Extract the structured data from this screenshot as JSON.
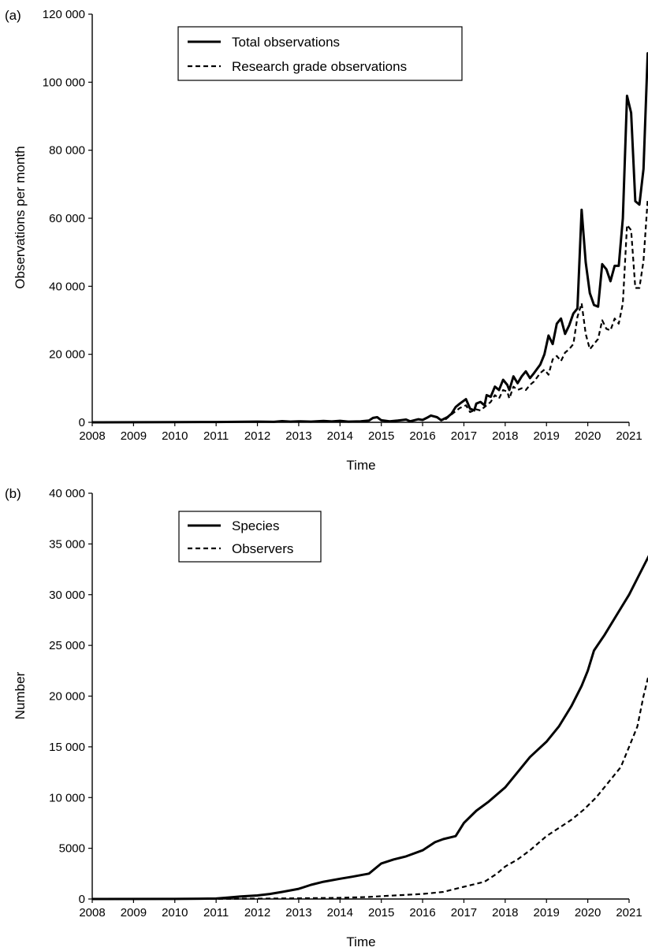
{
  "chart_data": [
    {
      "type": "line",
      "panel_label": "(a)",
      "xlabel": "Time",
      "ylabel": "Observations per month",
      "xlim": [
        2008,
        2021
      ],
      "ylim": [
        0,
        120000
      ],
      "x_ticks": [
        2008,
        2009,
        2010,
        2011,
        2012,
        2013,
        2014,
        2015,
        2016,
        2017,
        2018,
        2019,
        2020,
        2021
      ],
      "y_ticks": [
        0,
        20000,
        40000,
        60000,
        80000,
        100000,
        120000
      ],
      "y_tick_labels": [
        "0",
        "20 000",
        "40 000",
        "60 000",
        "80 000",
        "100 000",
        "120 000"
      ],
      "grid": false,
      "legend_position": "top-center",
      "series": [
        {
          "name": "Total observations",
          "style": "solid",
          "points": [
            [
              2008,
              0
            ],
            [
              2010,
              50
            ],
            [
              2011,
              100
            ],
            [
              2012,
              200
            ],
            [
              2012.4,
              150
            ],
            [
              2012.6,
              350
            ],
            [
              2012.8,
              200
            ],
            [
              2013,
              300
            ],
            [
              2013.3,
              200
            ],
            [
              2013.6,
              400
            ],
            [
              2013.8,
              250
            ],
            [
              2014,
              450
            ],
            [
              2014.2,
              200
            ],
            [
              2014.5,
              300
            ],
            [
              2014.7,
              500
            ],
            [
              2014.8,
              1300
            ],
            [
              2014.9,
              1500
            ],
            [
              2015,
              600
            ],
            [
              2015.2,
              300
            ],
            [
              2015.4,
              500
            ],
            [
              2015.6,
              800
            ],
            [
              2015.7,
              300
            ],
            [
              2015.9,
              900
            ],
            [
              2016,
              700
            ],
            [
              2016.1,
              1300
            ],
            [
              2016.2,
              2000
            ],
            [
              2016.35,
              1500
            ],
            [
              2016.45,
              600
            ],
            [
              2016.6,
              1500
            ],
            [
              2016.7,
              2500
            ],
            [
              2016.8,
              4500
            ],
            [
              2016.9,
              5500
            ],
            [
              2017.05,
              6800
            ],
            [
              2017.15,
              4000
            ],
            [
              2017.25,
              3500
            ],
            [
              2017.3,
              5500
            ],
            [
              2017.4,
              6000
            ],
            [
              2017.5,
              5000
            ],
            [
              2017.55,
              8000
            ],
            [
              2017.65,
              7500
            ],
            [
              2017.75,
              10500
            ],
            [
              2017.85,
              9500
            ],
            [
              2017.95,
              12500
            ],
            [
              2018.05,
              11000
            ],
            [
              2018.1,
              9500
            ],
            [
              2018.2,
              13500
            ],
            [
              2018.3,
              11500
            ],
            [
              2018.4,
              13500
            ],
            [
              2018.5,
              15000
            ],
            [
              2018.6,
              13000
            ],
            [
              2018.7,
              14500
            ],
            [
              2018.85,
              17000
            ],
            [
              2018.95,
              20000
            ],
            [
              2019.05,
              25500
            ],
            [
              2019.15,
              23000
            ],
            [
              2019.25,
              29000
            ],
            [
              2019.35,
              30500
            ],
            [
              2019.45,
              26000
            ],
            [
              2019.55,
              28500
            ],
            [
              2019.65,
              32000
            ],
            [
              2019.75,
              33500
            ],
            [
              2019.85,
              62500
            ],
            [
              2019.95,
              47000
            ],
            [
              2020.05,
              38000
            ],
            [
              2020.15,
              34500
            ],
            [
              2020.25,
              34000
            ],
            [
              2020.35,
              46500
            ],
            [
              2020.45,
              45000
            ],
            [
              2020.55,
              41500
            ],
            [
              2020.65,
              46000
            ],
            [
              2020.75,
              46000
            ],
            [
              2020.85,
              60000
            ],
            [
              2020.95,
              96000
            ],
            [
              2021.05,
              91000
            ],
            [
              2021.15,
              65000
            ],
            [
              2021.25,
              64000
            ],
            [
              2021.35,
              74500
            ],
            [
              2021.45,
              108500
            ],
            [
              2021.52,
              100000
            ]
          ]
        },
        {
          "name": "Research grade observations",
          "style": "dashed",
          "points": [
            [
              2016.55,
              800
            ],
            [
              2016.65,
              1800
            ],
            [
              2016.8,
              3300
            ],
            [
              2016.9,
              4200
            ],
            [
              2017.05,
              5000
            ],
            [
              2017.15,
              3000
            ],
            [
              2017.3,
              3800
            ],
            [
              2017.4,
              3500
            ],
            [
              2017.55,
              5000
            ],
            [
              2017.65,
              6000
            ],
            [
              2017.75,
              8000
            ],
            [
              2017.85,
              7000
            ],
            [
              2017.95,
              9500
            ],
            [
              2018.05,
              9000
            ],
            [
              2018.1,
              7000
            ],
            [
              2018.2,
              10500
            ],
            [
              2018.3,
              9500
            ],
            [
              2018.4,
              10000
            ],
            [
              2018.5,
              9500
            ],
            [
              2018.6,
              11000
            ],
            [
              2018.7,
              12000
            ],
            [
              2018.85,
              14500
            ],
            [
              2018.95,
              15500
            ],
            [
              2019.05,
              14000
            ],
            [
              2019.15,
              18500
            ],
            [
              2019.25,
              19500
            ],
            [
              2019.35,
              18000
            ],
            [
              2019.45,
              20500
            ],
            [
              2019.55,
              21500
            ],
            [
              2019.65,
              23000
            ],
            [
              2019.75,
              31000
            ],
            [
              2019.85,
              35000
            ],
            [
              2019.95,
              26000
            ],
            [
              2020.05,
              21500
            ],
            [
              2020.15,
              23000
            ],
            [
              2020.25,
              24500
            ],
            [
              2020.35,
              30000
            ],
            [
              2020.45,
              27500
            ],
            [
              2020.55,
              27000
            ],
            [
              2020.65,
              30500
            ],
            [
              2020.75,
              29000
            ],
            [
              2020.85,
              35000
            ],
            [
              2020.95,
              58000
            ],
            [
              2021.05,
              56500
            ],
            [
              2021.15,
              39500
            ],
            [
              2021.25,
              39500
            ],
            [
              2021.35,
              47500
            ],
            [
              2021.45,
              65500
            ],
            [
              2021.52,
              58000
            ]
          ]
        }
      ]
    },
    {
      "type": "line",
      "panel_label": "(b)",
      "xlabel": "Time",
      "ylabel": "Number",
      "xlim": [
        2008,
        2021
      ],
      "ylim": [
        0,
        40000
      ],
      "x_ticks": [
        2008,
        2009,
        2010,
        2011,
        2012,
        2013,
        2014,
        2015,
        2016,
        2017,
        2018,
        2019,
        2020,
        2021
      ],
      "y_ticks": [
        0,
        5000,
        10000,
        15000,
        20000,
        25000,
        30000,
        35000,
        40000
      ],
      "y_tick_labels": [
        "0",
        "5000",
        "10 000",
        "15 000",
        "20 000",
        "25 000",
        "30 000",
        "35 000",
        "40 000"
      ],
      "grid": false,
      "legend_position": "top-center",
      "series": [
        {
          "name": "Species",
          "style": "solid",
          "points": [
            [
              2008,
              0
            ],
            [
              2010,
              10
            ],
            [
              2011,
              50
            ],
            [
              2011.3,
              150
            ],
            [
              2011.6,
              250
            ],
            [
              2012,
              350
            ],
            [
              2012.3,
              500
            ],
            [
              2012.6,
              700
            ],
            [
              2013,
              1000
            ],
            [
              2013.3,
              1400
            ],
            [
              2013.6,
              1700
            ],
            [
              2014,
              2000
            ],
            [
              2014.3,
              2200
            ],
            [
              2014.7,
              2500
            ],
            [
              2015,
              3500
            ],
            [
              2015.3,
              3900
            ],
            [
              2015.6,
              4200
            ],
            [
              2016,
              4800
            ],
            [
              2016.3,
              5600
            ],
            [
              2016.5,
              5900
            ],
            [
              2016.8,
              6200
            ],
            [
              2017,
              7500
            ],
            [
              2017.3,
              8700
            ],
            [
              2017.6,
              9600
            ],
            [
              2018,
              11000
            ],
            [
              2018.3,
              12500
            ],
            [
              2018.6,
              14000
            ],
            [
              2019,
              15500
            ],
            [
              2019.3,
              17000
            ],
            [
              2019.6,
              19000
            ],
            [
              2019.85,
              21000
            ],
            [
              2020,
              22500
            ],
            [
              2020.15,
              24500
            ],
            [
              2020.4,
              26000
            ],
            [
              2020.7,
              28000
            ],
            [
              2021,
              30000
            ],
            [
              2021.25,
              32000
            ],
            [
              2021.5,
              34000
            ],
            [
              2021.6,
              35500
            ]
          ]
        },
        {
          "name": "Observers",
          "style": "dashed",
          "points": [
            [
              2008,
              0
            ],
            [
              2011,
              10
            ],
            [
              2012,
              40
            ],
            [
              2013,
              70
            ],
            [
              2014,
              120
            ],
            [
              2014.7,
              200
            ],
            [
              2015,
              280
            ],
            [
              2016,
              500
            ],
            [
              2016.5,
              700
            ],
            [
              2016.8,
              1000
            ],
            [
              2017,
              1200
            ],
            [
              2017.5,
              1700
            ],
            [
              2017.8,
              2500
            ],
            [
              2018,
              3200
            ],
            [
              2018.3,
              3900
            ],
            [
              2018.6,
              4800
            ],
            [
              2019,
              6200
            ],
            [
              2019.3,
              7000
            ],
            [
              2019.6,
              7800
            ],
            [
              2019.9,
              8800
            ],
            [
              2020.2,
              10000
            ],
            [
              2020.5,
              11500
            ],
            [
              2020.8,
              13000
            ],
            [
              2021,
              15000
            ],
            [
              2021.2,
              17000
            ],
            [
              2021.35,
              20000
            ],
            [
              2021.5,
              22500
            ],
            [
              2021.6,
              25500
            ]
          ]
        }
      ]
    }
  ]
}
